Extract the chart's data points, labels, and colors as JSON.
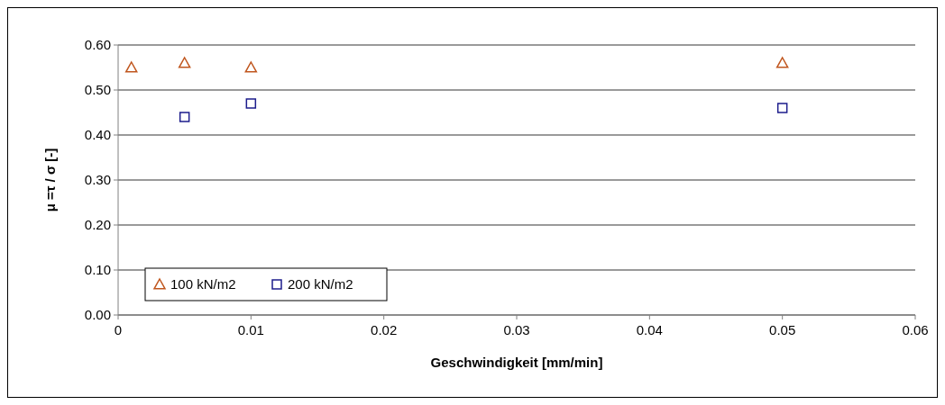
{
  "chart_data": {
    "type": "scatter",
    "xlabel": "Geschwindigkeit [mm/min]",
    "ylabel": "μ =τ / σ [-]",
    "xlim": [
      0,
      0.06
    ],
    "xticks": [
      0,
      {
        "value": 0.01,
        "label": "0.01"
      },
      {
        "value": 0.02,
        "label": "0.02"
      },
      {
        "value": 0.03,
        "label": "0.03"
      },
      {
        "value": 0.04,
        "label": "0.04"
      },
      {
        "value": 0.05,
        "label": "0.05"
      },
      {
        "value": 0.06,
        "label": "0.06"
      }
    ],
    "ylim": [
      0,
      0.6
    ],
    "yticks": [
      {
        "value": 0,
        "label": "0.00"
      },
      {
        "value": 0.1,
        "label": "0.10"
      },
      {
        "value": 0.2,
        "label": "0.20"
      },
      {
        "value": 0.3,
        "label": "0.30"
      },
      {
        "value": 0.4,
        "label": "0.40"
      },
      {
        "value": 0.5,
        "label": "0.50"
      },
      {
        "value": 0.6,
        "label": "0.60"
      }
    ],
    "grid": "y",
    "legend": "bottom left",
    "series": [
      {
        "name": "100 kN/m2",
        "color": "#c0561e",
        "marker": "triangle",
        "x": [
          0.001,
          0.005,
          0.01,
          0.05
        ],
        "values": [
          0.55,
          0.56,
          0.55,
          0.56
        ]
      },
      {
        "name": "200 kN/m2",
        "color": "#1c1c8c",
        "marker": "square",
        "x": [
          0.005,
          0.01,
          0.05
        ],
        "values": [
          0.44,
          0.47,
          0.46
        ]
      }
    ]
  }
}
